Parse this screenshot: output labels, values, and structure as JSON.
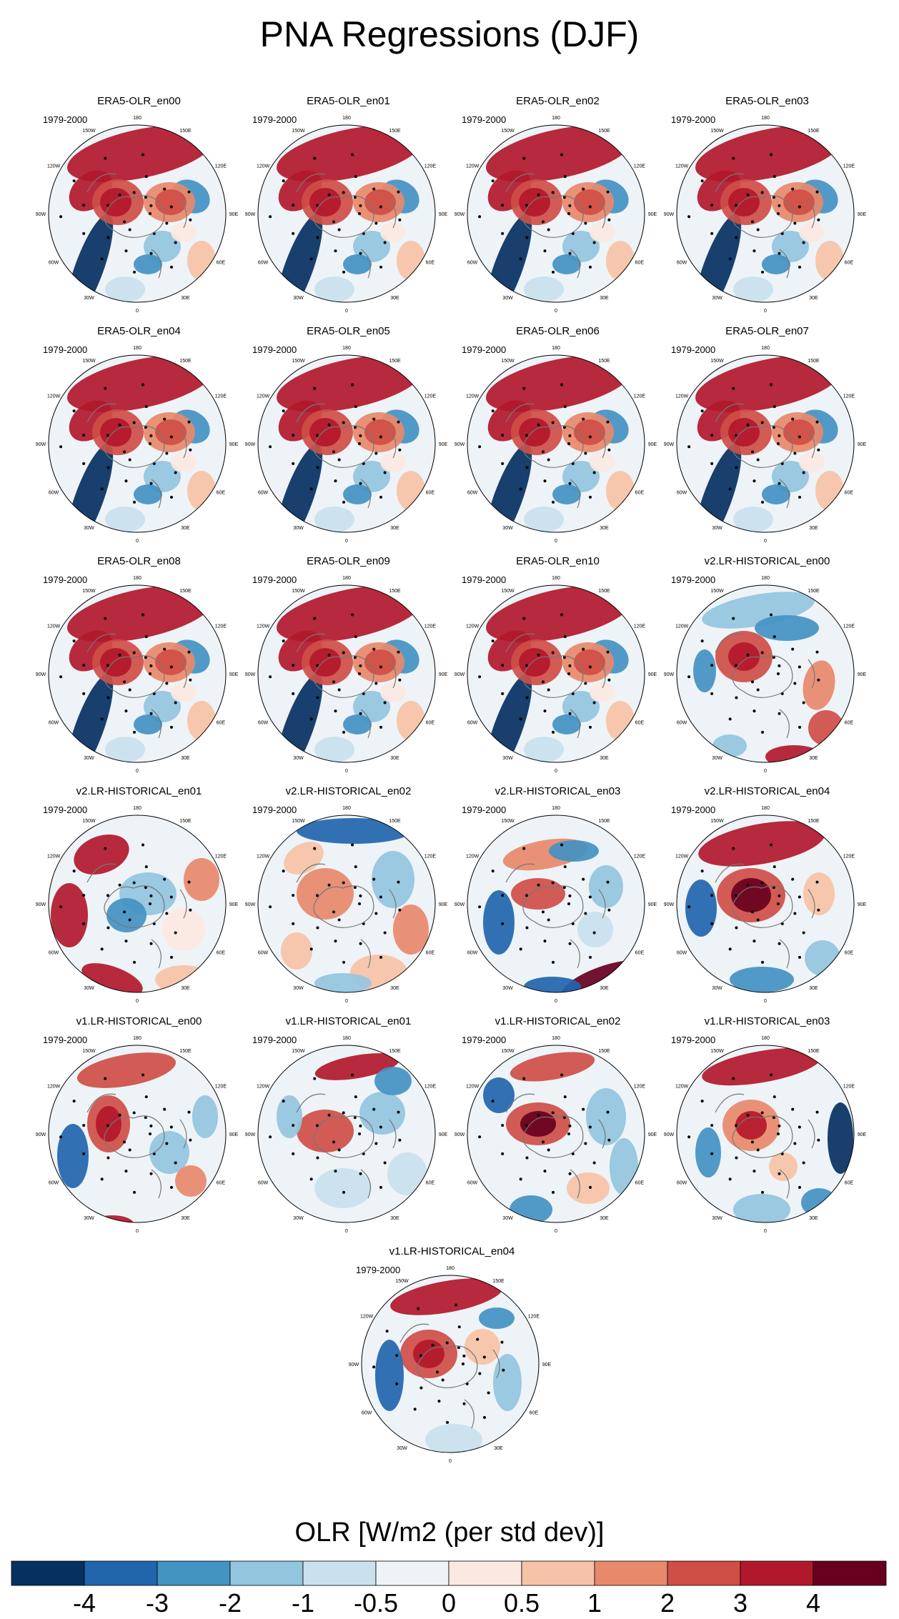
{
  "title": "PNA Regressions (DJF)",
  "period": "1979-2000",
  "longitude_labels": [
    "180",
    "150E",
    "120E",
    "90E",
    "60E",
    "30E",
    "0",
    "30W",
    "60W",
    "90W",
    "120W",
    "150W"
  ],
  "panels": [
    {
      "title": "ERA5-OLR_en00",
      "pattern": "era5"
    },
    {
      "title": "ERA5-OLR_en01",
      "pattern": "era5"
    },
    {
      "title": "ERA5-OLR_en02",
      "pattern": "era5"
    },
    {
      "title": "ERA5-OLR_en03",
      "pattern": "era5"
    },
    {
      "title": "ERA5-OLR_en04",
      "pattern": "era5"
    },
    {
      "title": "ERA5-OLR_en05",
      "pattern": "era5"
    },
    {
      "title": "ERA5-OLR_en06",
      "pattern": "era5"
    },
    {
      "title": "ERA5-OLR_en07",
      "pattern": "era5"
    },
    {
      "title": "ERA5-OLR_en08",
      "pattern": "era5"
    },
    {
      "title": "ERA5-OLR_en09",
      "pattern": "era5"
    },
    {
      "title": "ERA5-OLR_en10",
      "pattern": "era5"
    },
    {
      "title": "v2.LR-HISTORICAL_en00",
      "pattern": "v2a"
    },
    {
      "title": "v2.LR-HISTORICAL_en01",
      "pattern": "v2b"
    },
    {
      "title": "v2.LR-HISTORICAL_en02",
      "pattern": "v2c"
    },
    {
      "title": "v2.LR-HISTORICAL_en03",
      "pattern": "v2d"
    },
    {
      "title": "v2.LR-HISTORICAL_en04",
      "pattern": "v2e"
    },
    {
      "title": "v1.LR-HISTORICAL_en00",
      "pattern": "v1a"
    },
    {
      "title": "v1.LR-HISTORICAL_en01",
      "pattern": "v1b"
    },
    {
      "title": "v1.LR-HISTORICAL_en02",
      "pattern": "v1c"
    },
    {
      "title": "v1.LR-HISTORICAL_en03",
      "pattern": "v1d"
    },
    {
      "title": "v1.LR-HISTORICAL_en04",
      "pattern": "v1e"
    }
  ],
  "colorbar": {
    "title": "OLR [W/m2 (per std dev)]",
    "labels": [
      "-4",
      "-3",
      "-2",
      "-1",
      "-0.5",
      "0",
      "0.5",
      "1",
      "2",
      "3",
      "4"
    ],
    "colors": [
      "#053061",
      "#2166ac",
      "#4393c3",
      "#92c5de",
      "#c9e1ee",
      "#eef3f7",
      "#fbe9e1",
      "#f6c3a6",
      "#e8896b",
      "#cf4e46",
      "#b2182b",
      "#67001f"
    ]
  }
}
